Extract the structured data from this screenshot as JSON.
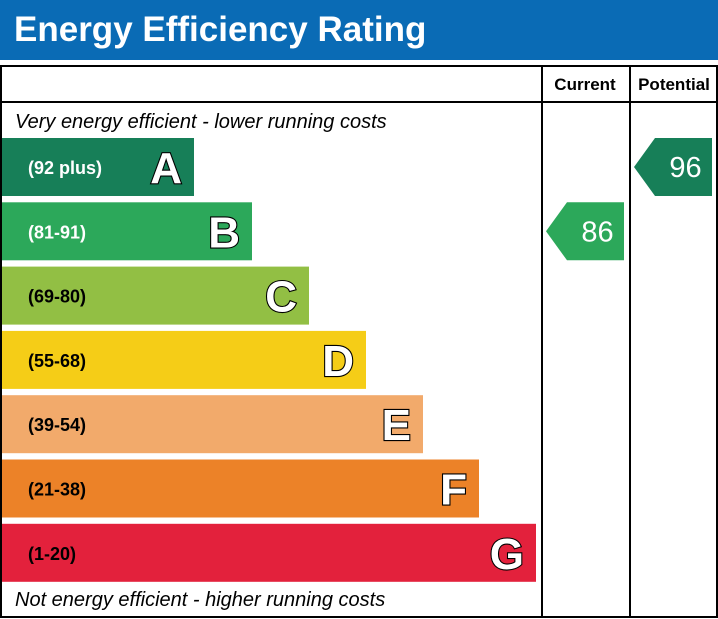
{
  "header": {
    "title": "Energy Efficiency Rating"
  },
  "columns": {
    "current": "Current",
    "potential": "Potential"
  },
  "captions": {
    "top": "Very energy efficient - lower running costs",
    "bottom": "Not energy efficient - higher running costs"
  },
  "chart_data": {
    "type": "bar",
    "title": "Energy Efficiency Rating",
    "bands": [
      {
        "letter": "A",
        "range": "(92 plus)",
        "color": "#177f58"
      },
      {
        "letter": "B",
        "range": "(81-91)",
        "color": "#2ca85a"
      },
      {
        "letter": "C",
        "range": "(69-80)",
        "color": "#92bf44"
      },
      {
        "letter": "D",
        "range": "(55-68)",
        "color": "#f5cd17"
      },
      {
        "letter": "E",
        "range": "(39-54)",
        "color": "#f2aa6b"
      },
      {
        "letter": "F",
        "range": "(21-38)",
        "color": "#ec8228"
      },
      {
        "letter": "G",
        "range": "(1-20)",
        "color": "#e3213c"
      }
    ],
    "current": {
      "value": 86,
      "band": "B",
      "color": "#2ca85a"
    },
    "potential": {
      "value": 96,
      "band": "A",
      "color": "#177f58"
    }
  }
}
